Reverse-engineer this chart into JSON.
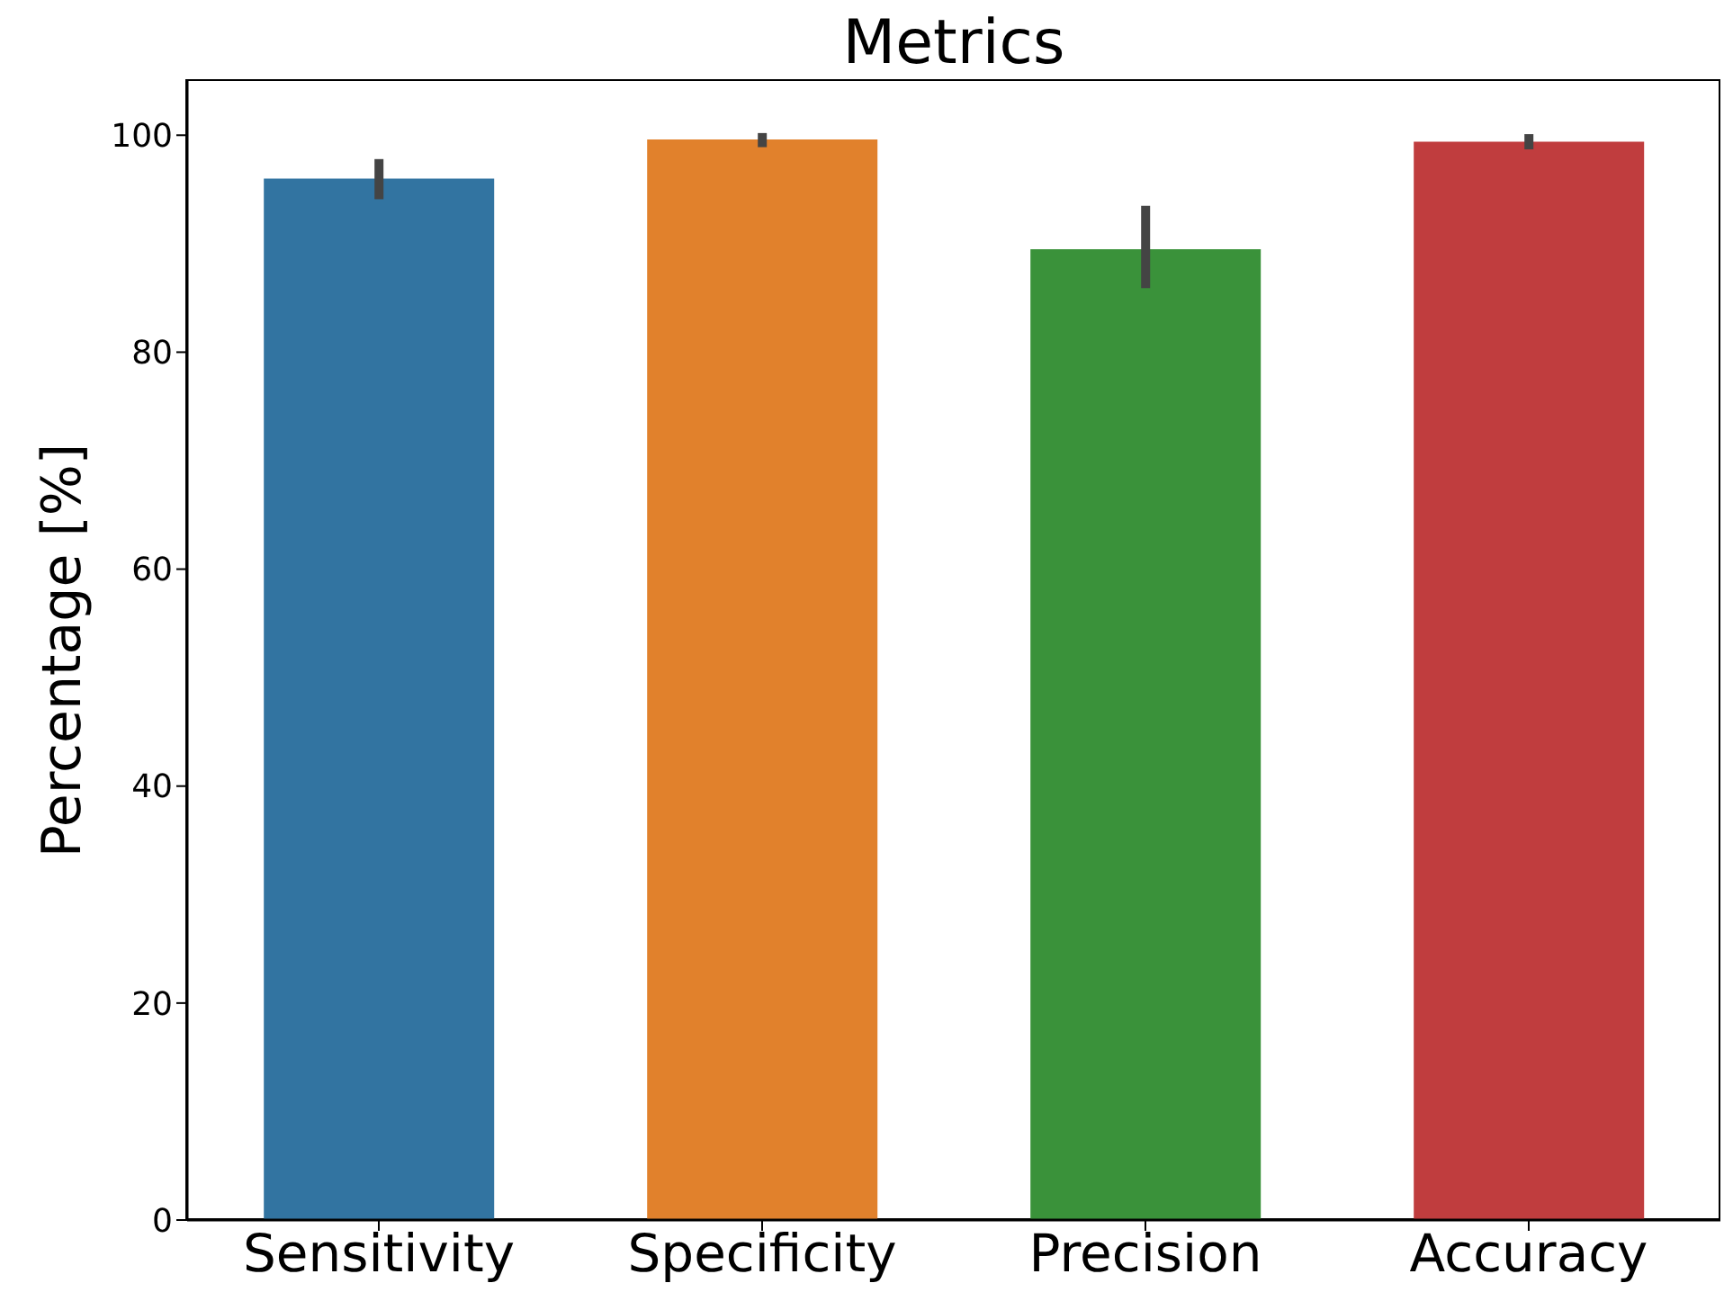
{
  "chart_data": {
    "type": "bar",
    "title": "Metrics",
    "ylabel": "Percentage [%]",
    "categories": [
      "Sensitivity",
      "Specificity",
      "Precision",
      "Accuracy"
    ],
    "values": [
      96.0,
      99.6,
      89.5,
      99.4
    ],
    "colors": [
      "#3274a1",
      "#e1812c",
      "#3a923a",
      "#c03d3e"
    ],
    "errors": [
      [
        94.1,
        97.8
      ],
      [
        98.9,
        100.2
      ],
      [
        85.9,
        93.5
      ],
      [
        98.7,
        100.1
      ]
    ],
    "ylim": [
      0,
      105
    ],
    "yticks": [
      0,
      20,
      40,
      60,
      80,
      100
    ],
    "grid": false,
    "legend": false
  }
}
